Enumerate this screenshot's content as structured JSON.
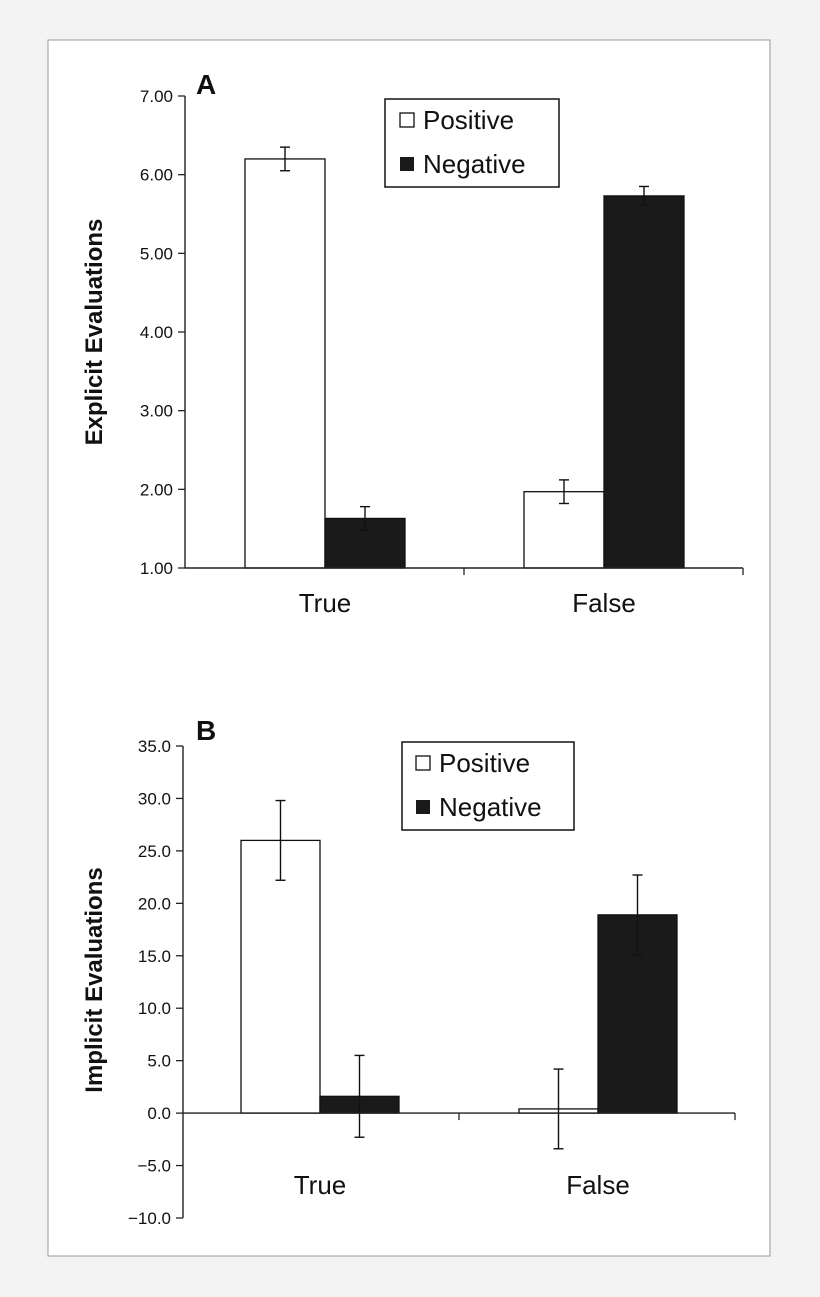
{
  "colors": {
    "background": "#f3f3f3",
    "plot_bg": "#ffffff",
    "positive": "#ffffff",
    "negative": "#1a1a1a",
    "axis": "#222222"
  },
  "chart_data": [
    {
      "type": "bar",
      "panel_label": "A",
      "title": "",
      "xlabel": "",
      "ylabel": "Explicit Evaluations",
      "categories": [
        "True",
        "False"
      ],
      "ylim": [
        1.0,
        7.0
      ],
      "yticks": [
        1.0,
        2.0,
        3.0,
        4.0,
        5.0,
        6.0,
        7.0
      ],
      "ytick_labels": [
        "1.00",
        "2.00",
        "3.00",
        "4.00",
        "5.00",
        "6.00",
        "7.00"
      ],
      "legend": {
        "position": "top-center",
        "entries": [
          "Positive",
          "Negative"
        ]
      },
      "series": [
        {
          "name": "Positive",
          "values": [
            6.2,
            1.97
          ],
          "errors": [
            0.15,
            0.15
          ]
        },
        {
          "name": "Negative",
          "values": [
            1.63,
            5.73
          ],
          "errors": [
            0.15,
            0.12
          ]
        }
      ]
    },
    {
      "type": "bar",
      "panel_label": "B",
      "title": "",
      "xlabel": "",
      "ylabel": "Implicit Evaluations",
      "categories": [
        "True",
        "False"
      ],
      "ylim": [
        -10.0,
        35.0
      ],
      "yticks": [
        -10,
        -5,
        0,
        5,
        10,
        15,
        20,
        25,
        30,
        35
      ],
      "ytick_labels": [
        "−10.0",
        "−5.0",
        "0.0",
        "5.0",
        "10.0",
        "15.0",
        "20.0",
        "25.0",
        "30.0",
        "35.0"
      ],
      "legend": {
        "position": "top-center",
        "entries": [
          "Positive",
          "Negative"
        ]
      },
      "series": [
        {
          "name": "Positive",
          "values": [
            26.0,
            0.4
          ],
          "errors": [
            3.8,
            3.8
          ]
        },
        {
          "name": "Negative",
          "values": [
            1.6,
            18.9
          ],
          "errors": [
            3.9,
            3.8
          ]
        }
      ]
    }
  ]
}
